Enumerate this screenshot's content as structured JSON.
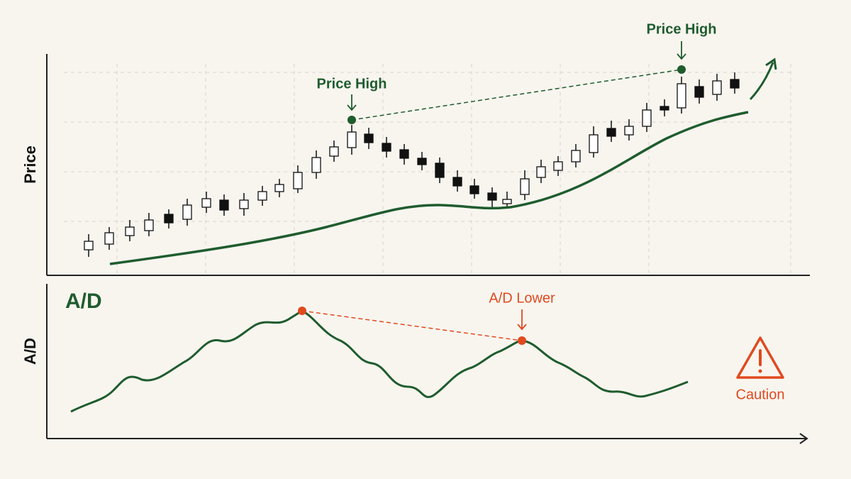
{
  "price_panel": {
    "axis_label": "Price",
    "annotations": [
      "Price High",
      "Price High"
    ]
  },
  "ad_panel": {
    "title": "A/D",
    "axis_label": "A/D",
    "annotation": "A/D Lower",
    "warning": "Caution"
  }
}
